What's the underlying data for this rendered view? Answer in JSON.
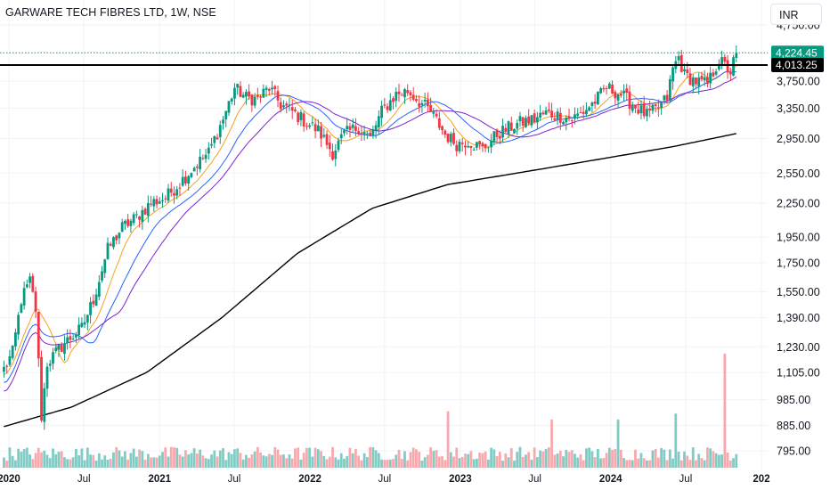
{
  "header": {
    "title": "GARWARE TECH FIBRES LTD, 1W, NSE",
    "currency": "INR"
  },
  "chart_data": {
    "type": "candlestick",
    "title": "GARWARE TECH FIBRES LTD, 1W, NSE",
    "scale": "log",
    "ylim": [
      750,
      4850
    ],
    "y_ticks": [
      "4,750.00",
      "3,750.00",
      "3,350.00",
      "2,950.00",
      "2,550.00",
      "2,250.00",
      "1,950.00",
      "1,750.00",
      "1,550.00",
      "1,390.00",
      "1,230.00",
      "1,105.00",
      "985.00",
      "885.00",
      "795.00"
    ],
    "x_ticks": [
      {
        "label": "2020",
        "date": "2020-01-01",
        "year": true
      },
      {
        "label": "Jul",
        "date": "2020-07-01",
        "year": false
      },
      {
        "label": "2021",
        "date": "2021-01-01",
        "year": true
      },
      {
        "label": "Jul",
        "date": "2021-07-01",
        "year": false
      },
      {
        "label": "2022",
        "date": "2022-01-01",
        "year": true
      },
      {
        "label": "Jul",
        "date": "2022-07-01",
        "year": false
      },
      {
        "label": "2023",
        "date": "2023-01-01",
        "year": true
      },
      {
        "label": "Jul",
        "date": "2023-07-01",
        "year": false
      },
      {
        "label": "2024",
        "date": "2024-01-01",
        "year": true
      },
      {
        "label": "Jul",
        "date": "2024-07-01",
        "year": false
      },
      {
        "label": "202",
        "date": "2025-01-01",
        "year": true
      }
    ],
    "close_anchors": [
      [
        "2019-12-20",
        1120
      ],
      [
        "2020-01-10",
        1200
      ],
      [
        "2020-01-31",
        1500
      ],
      [
        "2020-02-21",
        1620
      ],
      [
        "2020-03-06",
        1440
      ],
      [
        "2020-03-20",
        920
      ],
      [
        "2020-04-03",
        1150
      ],
      [
        "2020-05-15",
        1250
      ],
      [
        "2020-06-26",
        1330
      ],
      [
        "2020-07-24",
        1500
      ],
      [
        "2020-08-28",
        1850
      ],
      [
        "2020-10-02",
        2030
      ],
      [
        "2020-11-06",
        2120
      ],
      [
        "2020-12-11",
        2250
      ],
      [
        "2021-01-15",
        2300
      ],
      [
        "2021-02-19",
        2450
      ],
      [
        "2021-03-26",
        2620
      ],
      [
        "2021-04-30",
        2780
      ],
      [
        "2021-06-04",
        3200
      ],
      [
        "2021-07-02",
        3650
      ],
      [
        "2021-07-30",
        3500
      ],
      [
        "2021-08-27",
        3480
      ],
      [
        "2021-09-24",
        3650
      ],
      [
        "2021-10-22",
        3400
      ],
      [
        "2021-11-19",
        3300
      ],
      [
        "2021-12-24",
        3150
      ],
      [
        "2022-01-21",
        3050
      ],
      [
        "2022-02-25",
        2780
      ],
      [
        "2022-03-25",
        3000
      ],
      [
        "2022-04-29",
        3100
      ],
      [
        "2022-05-27",
        2950
      ],
      [
        "2022-06-24",
        3300
      ],
      [
        "2022-07-29",
        3550
      ],
      [
        "2022-08-26",
        3600
      ],
      [
        "2022-09-23",
        3450
      ],
      [
        "2022-10-21",
        3300
      ],
      [
        "2022-11-25",
        3000
      ],
      [
        "2022-12-23",
        2880
      ],
      [
        "2023-01-20",
        2920
      ],
      [
        "2023-02-24",
        2820
      ],
      [
        "2023-03-31",
        3000
      ],
      [
        "2023-04-28",
        3080
      ],
      [
        "2023-05-26",
        3150
      ],
      [
        "2023-06-30",
        3200
      ],
      [
        "2023-07-28",
        3280
      ],
      [
        "2023-08-25",
        3250
      ],
      [
        "2023-09-29",
        3200
      ],
      [
        "2023-10-27",
        3300
      ],
      [
        "2023-11-24",
        3450
      ],
      [
        "2023-12-22",
        3650
      ],
      [
        "2024-01-26",
        3550
      ],
      [
        "2024-02-23",
        3400
      ],
      [
        "2024-03-29",
        3250
      ],
      [
        "2024-04-26",
        3350
      ],
      [
        "2024-05-17",
        3500
      ],
      [
        "2024-05-31",
        3950
      ],
      [
        "2024-06-14",
        4150
      ],
      [
        "2024-06-28",
        3850
      ],
      [
        "2024-07-26",
        3750
      ],
      [
        "2024-08-23",
        3700
      ],
      [
        "2024-09-20",
        4100
      ],
      [
        "2024-10-18",
        3900
      ],
      [
        "2024-11-01",
        4224
      ]
    ],
    "sma_200_anchors": [
      [
        "2019-12-20",
        880
      ],
      [
        "2020-06-01",
        955
      ],
      [
        "2020-12-01",
        1105
      ],
      [
        "2021-06-01",
        1390
      ],
      [
        "2021-12-01",
        1820
      ],
      [
        "2022-06-01",
        2200
      ],
      [
        "2022-12-01",
        2430
      ],
      [
        "2023-06-01",
        2560
      ],
      [
        "2023-12-01",
        2700
      ],
      [
        "2024-06-01",
        2850
      ],
      [
        "2024-11-01",
        3010
      ]
    ],
    "volume_spikes": [
      {
        "date": "2022-12-02",
        "value": 0.48
      },
      {
        "date": "2023-08-11",
        "value": 0.41
      },
      {
        "date": "2024-01-19",
        "value": 0.41
      },
      {
        "date": "2024-06-07",
        "value": 0.46
      },
      {
        "date": "2024-10-04",
        "value": 0.97
      }
    ],
    "price_lines": [
      {
        "value": "4,224.45",
        "price": 4224.45,
        "color": "#089981",
        "style": "dotted"
      },
      {
        "value": "4,013.25",
        "price": 4013.25,
        "color": "#000000",
        "style": "solid"
      }
    ],
    "moving_averages": [
      {
        "period": 10,
        "color": "#f7a21b"
      },
      {
        "period": 20,
        "color": "#2962ff"
      },
      {
        "period": 30,
        "color": "#7e22ce"
      },
      {
        "period": 200,
        "color": "#000000"
      }
    ],
    "colors": {
      "up": "#089981",
      "down": "#f23645",
      "volume_up": "#80cbc4",
      "volume_down": "#f7a9ae"
    }
  }
}
